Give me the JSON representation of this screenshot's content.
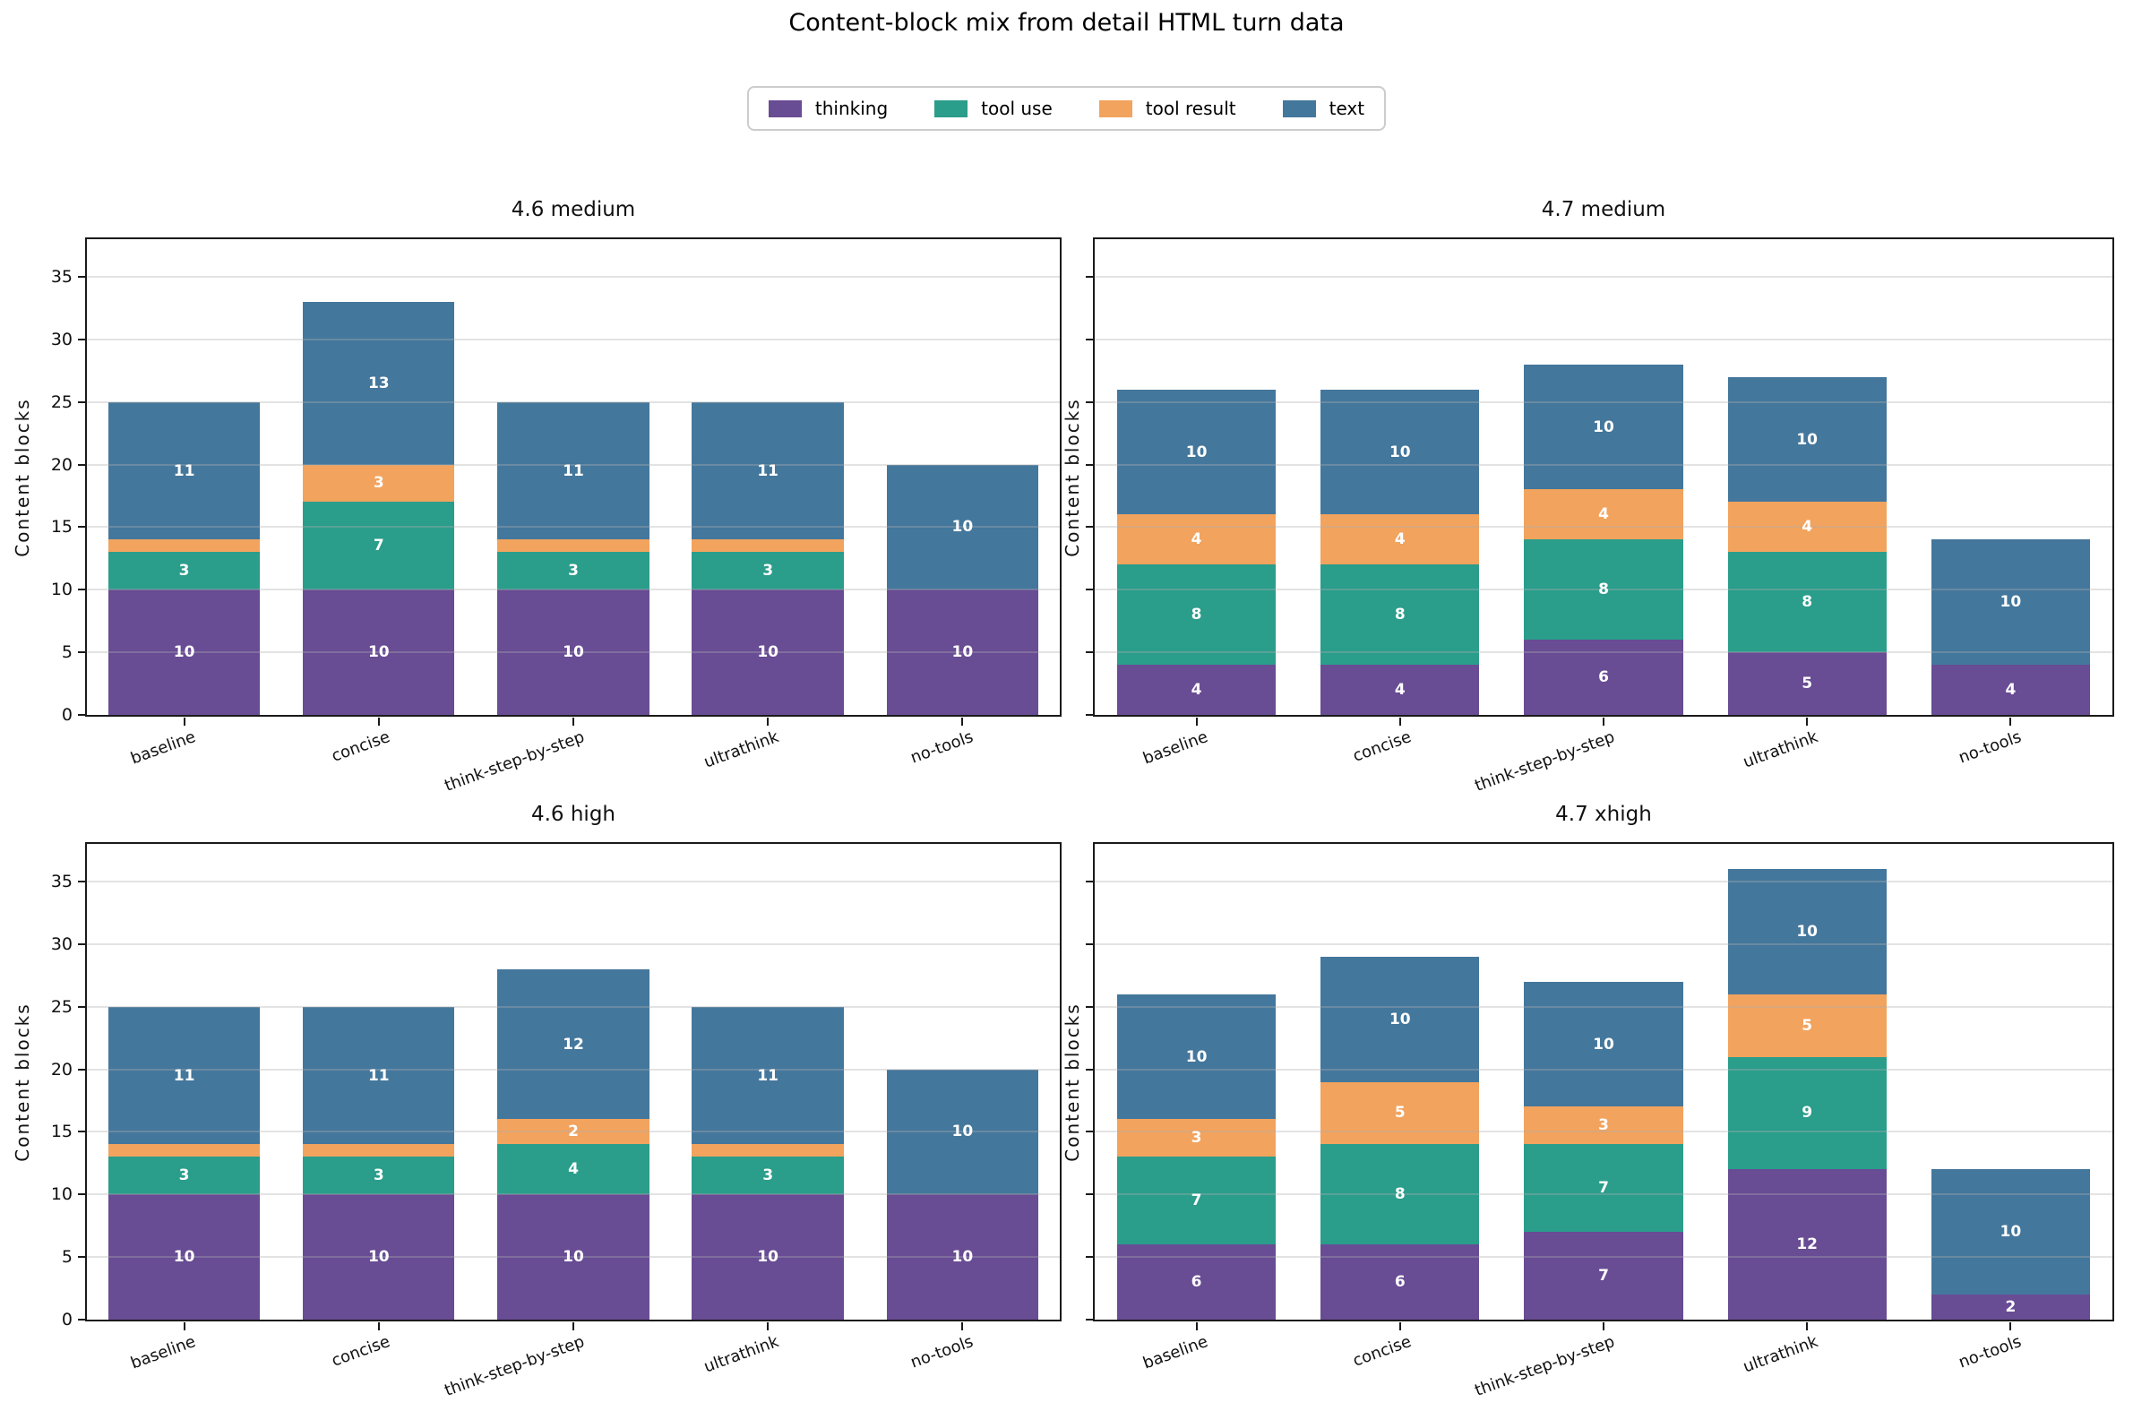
{
  "title": "Content-block mix from detail HTML turn data",
  "legend": {
    "items": [
      {
        "label": "thinking",
        "color": "#684c94"
      },
      {
        "label": "tool use",
        "color": "#2a9d8b"
      },
      {
        "label": "tool result",
        "color": "#f2a35e"
      },
      {
        "label": "text",
        "color": "#44779c"
      }
    ]
  },
  "chart_data": [
    {
      "type": "bar",
      "stacked": true,
      "title": "4.6 medium",
      "ylabel": "Content blocks",
      "categories": [
        "baseline",
        "concise",
        "think-step-by-step",
        "ultrathink",
        "no-tools"
      ],
      "series": [
        {
          "name": "thinking",
          "color": "#684c94",
          "values": [
            10,
            10,
            10,
            10,
            10
          ]
        },
        {
          "name": "tool use",
          "color": "#2a9d8b",
          "values": [
            3,
            7,
            3,
            3,
            0
          ]
        },
        {
          "name": "tool result",
          "color": "#f2a35e",
          "values": [
            1,
            3,
            1,
            1,
            0
          ]
        },
        {
          "name": "text",
          "color": "#44779c",
          "values": [
            11,
            13,
            11,
            11,
            10
          ]
        }
      ],
      "totals": [
        25,
        33,
        25,
        25,
        20
      ],
      "ylim": [
        0,
        38
      ],
      "yticks": [
        0,
        5,
        10,
        15,
        20,
        25,
        30,
        35
      ],
      "show_ytick_labels": true,
      "grid": true,
      "bar_label_min": 2
    },
    {
      "type": "bar",
      "stacked": true,
      "title": "4.7 medium",
      "ylabel": "Content blocks",
      "categories": [
        "baseline",
        "concise",
        "think-step-by-step",
        "ultrathink",
        "no-tools"
      ],
      "series": [
        {
          "name": "thinking",
          "color": "#684c94",
          "values": [
            4,
            4,
            6,
            5,
            4
          ]
        },
        {
          "name": "tool use",
          "color": "#2a9d8b",
          "values": [
            8,
            8,
            8,
            8,
            0
          ]
        },
        {
          "name": "tool result",
          "color": "#f2a35e",
          "values": [
            4,
            4,
            4,
            4,
            0
          ]
        },
        {
          "name": "text",
          "color": "#44779c",
          "values": [
            10,
            10,
            10,
            10,
            10
          ]
        }
      ],
      "totals": [
        26,
        26,
        28,
        27,
        14
      ],
      "ylim": [
        0,
        38
      ],
      "yticks": [
        0,
        5,
        10,
        15,
        20,
        25,
        30,
        35
      ],
      "show_ytick_labels": false,
      "grid": true,
      "bar_label_min": 2
    },
    {
      "type": "bar",
      "stacked": true,
      "title": "4.6 high",
      "ylabel": "Content blocks",
      "categories": [
        "baseline",
        "concise",
        "think-step-by-step",
        "ultrathink",
        "no-tools"
      ],
      "series": [
        {
          "name": "thinking",
          "color": "#684c94",
          "values": [
            10,
            10,
            10,
            10,
            10
          ]
        },
        {
          "name": "tool use",
          "color": "#2a9d8b",
          "values": [
            3,
            3,
            4,
            3,
            0
          ]
        },
        {
          "name": "tool result",
          "color": "#f2a35e",
          "values": [
            1,
            1,
            2,
            1,
            0
          ]
        },
        {
          "name": "text",
          "color": "#44779c",
          "values": [
            11,
            11,
            12,
            11,
            10
          ]
        }
      ],
      "totals": [
        25,
        25,
        28,
        25,
        20
      ],
      "ylim": [
        0,
        38
      ],
      "yticks": [
        0,
        5,
        10,
        15,
        20,
        25,
        30,
        35
      ],
      "show_ytick_labels": true,
      "grid": true,
      "bar_label_min": 2
    },
    {
      "type": "bar",
      "stacked": true,
      "title": "4.7 xhigh",
      "ylabel": "Content blocks",
      "categories": [
        "baseline",
        "concise",
        "think-step-by-step",
        "ultrathink",
        "no-tools"
      ],
      "series": [
        {
          "name": "thinking",
          "color": "#684c94",
          "values": [
            6,
            6,
            7,
            12,
            2
          ]
        },
        {
          "name": "tool use",
          "color": "#2a9d8b",
          "values": [
            7,
            8,
            7,
            9,
            0
          ]
        },
        {
          "name": "tool result",
          "color": "#f2a35e",
          "values": [
            3,
            5,
            3,
            5,
            0
          ]
        },
        {
          "name": "text",
          "color": "#44779c",
          "values": [
            10,
            10,
            10,
            10,
            10
          ]
        }
      ],
      "totals": [
        26,
        29,
        27,
        36,
        12
      ],
      "ylim": [
        0,
        38
      ],
      "yticks": [
        0,
        5,
        10,
        15,
        20,
        25,
        30,
        35
      ],
      "show_ytick_labels": false,
      "grid": true,
      "bar_label_min": 2
    }
  ]
}
